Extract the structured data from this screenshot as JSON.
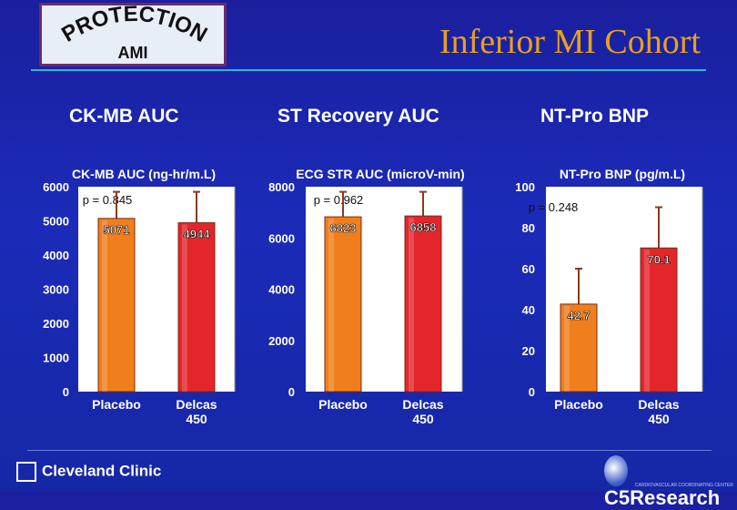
{
  "header": {
    "logo_text_top": "PROTECTION",
    "logo_text_bottom": "AMI",
    "title": "Inferior MI Cohort"
  },
  "panels": [
    "CK-MB AUC",
    "ST Recovery AUC",
    "NT-Pro BNP"
  ],
  "colors": {
    "placebo": "#f07e1c",
    "delcas": "#e3262b",
    "title": "#e8a020",
    "bg": "#1b2bb8"
  },
  "chart_data": [
    {
      "type": "bar",
      "title": "CK-MB AUC (ng-hr/m.L)",
      "categories": [
        "Placebo",
        "Delcas 450"
      ],
      "values": [
        5071,
        4944
      ],
      "value_labels": [
        "5071",
        "4944"
      ],
      "error_tops": [
        5850,
        5850
      ],
      "pvalue": "p = 0.845",
      "ylim": [
        0,
        6000
      ],
      "yticks": [
        "0",
        "1000",
        "2000",
        "3000",
        "4000",
        "5000",
        "6000"
      ]
    },
    {
      "type": "bar",
      "title": "ECG STR AUC (microV-min)",
      "categories": [
        "Placebo",
        "Delcas 450"
      ],
      "values": [
        6823,
        6858
      ],
      "value_labels": [
        "6823",
        "6858"
      ],
      "error_tops": [
        7800,
        7800
      ],
      "pvalue": "p = 0.962",
      "ylim": [
        0,
        8000
      ],
      "yticks": [
        "0",
        "2000",
        "4000",
        "6000",
        "8000"
      ]
    },
    {
      "type": "bar",
      "title": "NT-Pro BNP (pg/m.L)",
      "categories": [
        "Placebo",
        "Delcas 450"
      ],
      "values": [
        42.7,
        70.1
      ],
      "value_labels": [
        "42.7",
        "70.1"
      ],
      "error_tops": [
        60,
        90
      ],
      "pvalue": "p = 0.248",
      "ylim": [
        0,
        100
      ],
      "yticks": [
        "0",
        "20",
        "40",
        "60",
        "80",
        "100"
      ]
    }
  ],
  "footer": {
    "left_logo": "Cleveland Clinic",
    "right_logo": "C5Research",
    "right_tagline": "CARDIOVASCULAR COORDINATING CENTER"
  }
}
